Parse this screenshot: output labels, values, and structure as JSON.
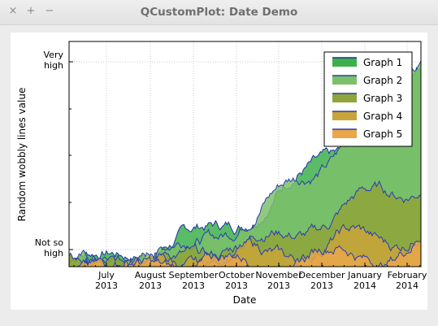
{
  "window": {
    "title": "QCustomPlot: Date Demo",
    "close_glyph": "×",
    "max_glyph": "+",
    "min_glyph": "−"
  },
  "chart_data": {
    "type": "area",
    "title": "",
    "xlabel": "Date",
    "ylabel": "Random wobbly lines value",
    "x_ticks": [
      {
        "line1": "July",
        "line2": "2013"
      },
      {
        "line1": "August",
        "line2": "2013"
      },
      {
        "line1": "September",
        "line2": "2013"
      },
      {
        "line1": "October",
        "line2": "2013"
      },
      {
        "line1": "November",
        "line2": "2013"
      },
      {
        "line1": "December",
        "line2": "2013"
      },
      {
        "line1": "January",
        "line2": "2014"
      },
      {
        "line1": "February",
        "line2": "2014"
      }
    ],
    "y_ticks": [
      {
        "line1": "Very",
        "line2": "high"
      },
      {
        "line1": "Not so",
        "line2": "high"
      }
    ],
    "x_range_days": [
      0,
      245
    ],
    "y_range_fraction": [
      0,
      1
    ],
    "grid": true,
    "legend_position": "top-right",
    "series": [
      {
        "name": "Graph 1",
        "color": "#3db04b",
        "line": "#1f2fa8",
        "peak": 0.95,
        "start": 0.05
      },
      {
        "name": "Graph 2",
        "color": "#7cc06a",
        "line": "#2a3cb0",
        "peak": 1.0,
        "start": 0.02
      },
      {
        "name": "Graph 3",
        "color": "#8fa53b",
        "line": "#2a3cb0",
        "peak": 0.42,
        "start": 0.02
      },
      {
        "name": "Graph 4",
        "color": "#c9a43a",
        "line": "#2a3cb0",
        "peak": 0.18,
        "start": 0.01
      },
      {
        "name": "Graph 5",
        "color": "#e9a74a",
        "line": "#2a3cb0",
        "peak": 0.1,
        "start": 0.0
      }
    ]
  }
}
